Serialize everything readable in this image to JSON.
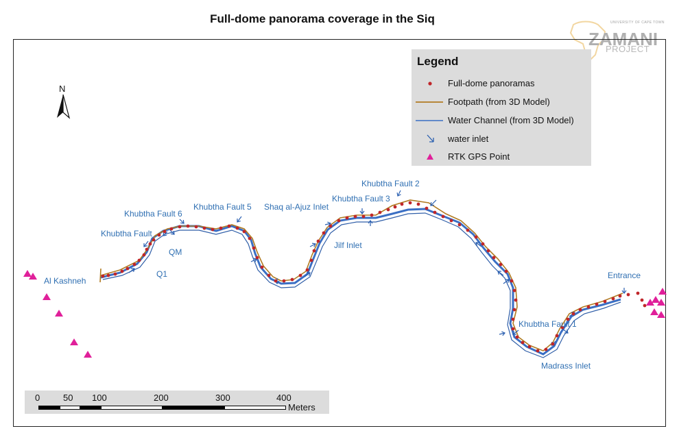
{
  "title": "Full-dome panorama coverage in the Siq",
  "logo": {
    "small_text": "UNIVERSITY OF CAPE TOWN",
    "main_text": "ZAMANI",
    "sub_text": "PROJECT"
  },
  "legend": {
    "title": "Legend",
    "items": [
      {
        "label": "Full-dome panoramas",
        "symbol": "red-dot",
        "color": "#c0262a"
      },
      {
        "label": "Footpath (from 3D Model)",
        "symbol": "brown-line",
        "color": "#b07a20"
      },
      {
        "label": "Water Channel (from 3D Model)",
        "symbol": "blue-line",
        "color": "#3a6fc4"
      },
      {
        "label": "water inlet",
        "symbol": "blue-arrow",
        "color": "#2a5fb0"
      },
      {
        "label": "RTK GPS Point",
        "symbol": "magenta-triangle",
        "color": "#e0209a"
      }
    ]
  },
  "north_arrow": {
    "label": "N"
  },
  "places": {
    "al_kashneh": "Al Kashneh",
    "q1": "Q1",
    "qm": "QM",
    "kf_left": "Khubtha Fault",
    "kf6": "Khubtha Fault 6",
    "kf5": "Khubtha Fault 5",
    "shaq": "Shaq al-Ajuz Inlet",
    "jilf": "Jilf Inlet",
    "kf3": "Khubtha Fault 3",
    "kf2": "Khubtha Fault 2",
    "kf1": "Khubtha Fault 1",
    "madrass": "Madrass Inlet",
    "entrance": "Entrance"
  },
  "scale_bar": {
    "ticks": [
      "0",
      "50",
      "100",
      "200",
      "300",
      "400"
    ],
    "unit": "Meters"
  }
}
